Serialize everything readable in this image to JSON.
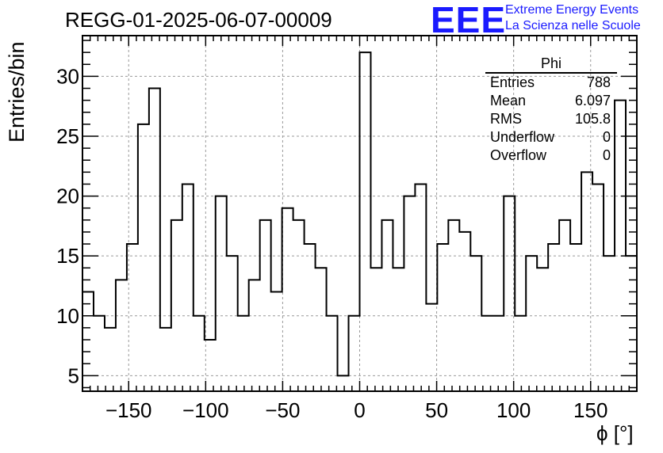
{
  "chart_data": {
    "type": "histogram",
    "title": "REGG-01-2025-06-07-00009",
    "xlabel": "ϕ [°]",
    "ylabel": "Entries/bin",
    "xlim": [
      -180,
      180
    ],
    "ylim": [
      3.7,
      33.4
    ],
    "bin_width": 7.2,
    "bin_edges_start": -180,
    "values": [
      12,
      10,
      9,
      13,
      16,
      26,
      29,
      9,
      18,
      21,
      10,
      8,
      20,
      15,
      10,
      13,
      18,
      12,
      19,
      18,
      16,
      14,
      10,
      5,
      10,
      32,
      14,
      18,
      14,
      20,
      21,
      11,
      16,
      18,
      17,
      15,
      10,
      10,
      20,
      10,
      15,
      14,
      16,
      18,
      16,
      22,
      21,
      15,
      28,
      15
    ],
    "x_ticks": [
      -150,
      -100,
      -50,
      0,
      50,
      100,
      150
    ],
    "x_tick_labels": [
      "−150",
      "−100",
      "−50",
      "0",
      "50",
      "100",
      "150"
    ],
    "y_ticks": [
      5,
      10,
      15,
      20,
      25,
      30
    ],
    "y_tick_labels": [
      "5",
      "10",
      "15",
      "20",
      "25",
      "30"
    ],
    "grid": true
  },
  "logo": {
    "text": "EEE",
    "line1": "Extreme Energy Events",
    "line2": "La Scienza nelle Scuole"
  },
  "stats": {
    "title": "Phi",
    "rows": [
      {
        "label": "Entries",
        "value": "788"
      },
      {
        "label": "Mean",
        "value": "6.097"
      },
      {
        "label": "RMS",
        "value": "105.8"
      },
      {
        "label": "Underflow",
        "value": "0"
      },
      {
        "label": "Overflow",
        "value": "0"
      }
    ]
  }
}
